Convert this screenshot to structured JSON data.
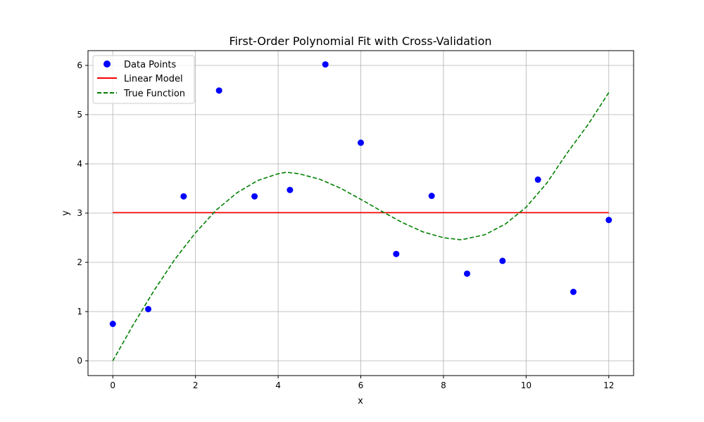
{
  "chart_data": {
    "type": "scatter",
    "title": "First-Order Polynomial Fit with Cross-Validation",
    "xlabel": "x",
    "ylabel": "y",
    "xlim": [
      -0.6,
      12.6
    ],
    "ylim": [
      -0.3,
      6.3
    ],
    "xticks": [
      0,
      2,
      4,
      6,
      8,
      10,
      12
    ],
    "yticks": [
      0,
      1,
      2,
      3,
      4,
      5,
      6
    ],
    "grid": true,
    "legend_position": "top-left",
    "series": [
      {
        "name": "Data Points",
        "kind": "scatter",
        "color": "#0000ff",
        "x": [
          0,
          0.857,
          1.714,
          2.571,
          3.429,
          4.286,
          5.143,
          6.0,
          6.857,
          7.714,
          8.571,
          9.429,
          10.286,
          11.143,
          12.0
        ],
        "y": [
          0.75,
          1.05,
          3.34,
          5.49,
          3.34,
          3.47,
          6.02,
          4.43,
          2.17,
          3.35,
          1.77,
          2.03,
          3.68,
          1.4,
          2.86
        ]
      },
      {
        "name": "Linear Model",
        "kind": "line",
        "color": "#ff0000",
        "dash": "solid",
        "x": [
          0,
          12
        ],
        "y": [
          3.01,
          3.01
        ]
      },
      {
        "name": "True Function",
        "kind": "line",
        "color": "#008000",
        "dash": "dashed",
        "x": [
          0,
          0.5,
          1,
          1.5,
          2,
          2.5,
          3,
          3.5,
          4,
          4.2,
          4.5,
          5,
          5.5,
          6,
          6.5,
          7,
          7.5,
          8,
          8.4,
          8.5,
          9,
          9.5,
          10,
          10.5,
          11,
          11.5,
          12
        ],
        "y": [
          0.0,
          0.74,
          1.43,
          2.06,
          2.6,
          3.06,
          3.41,
          3.66,
          3.8,
          3.83,
          3.8,
          3.69,
          3.51,
          3.28,
          3.04,
          2.81,
          2.62,
          2.5,
          2.46,
          2.47,
          2.56,
          2.78,
          3.12,
          3.61,
          4.23,
          4.8,
          5.45
        ]
      }
    ]
  }
}
